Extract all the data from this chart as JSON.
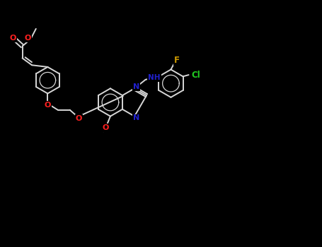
{
  "background": "#000000",
  "bond_color": "#d8d8d8",
  "bond_lw": 1.4,
  "atom_colors": {
    "O": "#ff2020",
    "N": "#2020cc",
    "Cl": "#22cc22",
    "F": "#cc9900",
    "C": "#d8d8d8"
  },
  "fig_width": 4.55,
  "fig_height": 3.5,
  "dpi": 100,
  "xlim": [
    0,
    10
  ],
  "ylim": [
    0,
    7.7
  ]
}
